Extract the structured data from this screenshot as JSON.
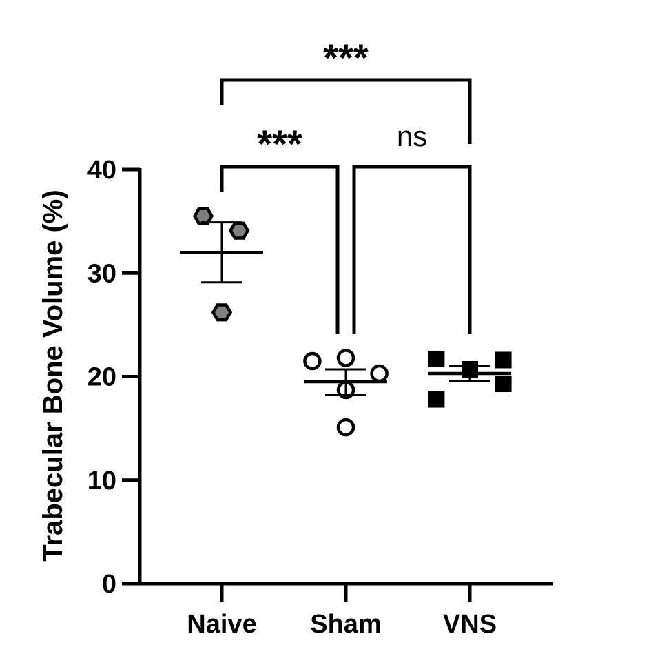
{
  "chart_data": {
    "type": "scatter",
    "ylabel": "Trabecular Bone Volume (%)",
    "ylim": [
      0,
      40
    ],
    "yticks": [
      "0",
      "10",
      "20",
      "30",
      "40"
    ],
    "categories": [
      "Naive",
      "Sham",
      "VNS"
    ],
    "groups": [
      {
        "name": "Naive",
        "marker": "hexagon",
        "fill": "#808080",
        "points": [
          {
            "offset": -0.15,
            "y": 35.5
          },
          {
            "offset": 0.14,
            "y": 34.1
          },
          {
            "offset": 0.0,
            "y": 26.2
          }
        ],
        "mean": 32.0,
        "sem": [
          29.1,
          34.9
        ]
      },
      {
        "name": "Sham",
        "marker": "circle-open",
        "fill": "#ffffff",
        "points": [
          {
            "offset": -0.27,
            "y": 21.5
          },
          {
            "offset": 0.0,
            "y": 21.8
          },
          {
            "offset": 0.27,
            "y": 20.3
          },
          {
            "offset": 0.0,
            "y": 18.7
          },
          {
            "offset": 0.0,
            "y": 15.1
          }
        ],
        "mean": 19.5,
        "sem": [
          18.2,
          20.7
        ]
      },
      {
        "name": "VNS",
        "marker": "square",
        "fill": "#000000",
        "points": [
          {
            "offset": -0.27,
            "y": 21.7
          },
          {
            "offset": 0.0,
            "y": 20.7
          },
          {
            "offset": 0.27,
            "y": 21.6
          },
          {
            "offset": 0.27,
            "y": 19.3
          },
          {
            "offset": -0.27,
            "y": 17.8
          }
        ],
        "mean": 20.3,
        "sem": [
          19.6,
          21.0
        ]
      }
    ],
    "comparisons": [
      {
        "from": "Naive",
        "to": "Sham",
        "label": "***",
        "level": 0
      },
      {
        "from": "Sham",
        "to": "VNS",
        "label": "ns",
        "level": 0
      },
      {
        "from": "Naive",
        "to": "VNS",
        "label": "***",
        "level": 1
      }
    ],
    "colors": {
      "axis": "#000000"
    }
  }
}
